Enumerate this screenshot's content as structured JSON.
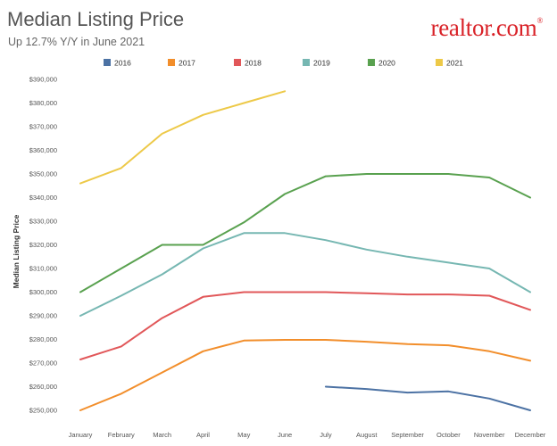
{
  "header": {
    "title": "Median Listing Price",
    "subtitle": "Up 12.7% Y/Y in June 2021",
    "logo_text": "realtor.com",
    "logo_mark": "®"
  },
  "chart_data": {
    "type": "line",
    "title": "Median Listing Price",
    "subtitle": "Up 12.7% Y/Y in June 2021",
    "xlabel": "",
    "ylabel": "Median Listing Price",
    "ylim": [
      246000,
      391000
    ],
    "yticks": [
      250000,
      260000,
      270000,
      280000,
      290000,
      300000,
      310000,
      320000,
      330000,
      340000,
      350000,
      360000,
      370000,
      380000,
      390000
    ],
    "ytick_labels": [
      "$250,000",
      "$260,000",
      "$270,000",
      "$280,000",
      "$290,000",
      "$300,000",
      "$310,000",
      "$320,000",
      "$330,000",
      "$340,000",
      "$350,000",
      "$360,000",
      "$370,000",
      "$380,000",
      "$390,000"
    ],
    "categories": [
      "January",
      "February",
      "March",
      "April",
      "May",
      "June",
      "July",
      "August",
      "September",
      "October",
      "November",
      "December"
    ],
    "grid": false,
    "legend_position": "top",
    "series": [
      {
        "name": "2016",
        "color": "#4c72a4",
        "values": [
          null,
          null,
          null,
          null,
          null,
          null,
          260000,
          259000,
          257500,
          258000,
          255000,
          250000
        ]
      },
      {
        "name": "2017",
        "color": "#f28e2b",
        "values": [
          250000,
          257000,
          266000,
          275000,
          279500,
          279800,
          279800,
          279000,
          278000,
          277500,
          275000,
          271000
        ]
      },
      {
        "name": "2018",
        "color": "#e15759",
        "values": [
          271500,
          277000,
          289000,
          298000,
          300000,
          300000,
          300000,
          299500,
          299000,
          299000,
          298500,
          292500
        ]
      },
      {
        "name": "2019",
        "color": "#76b7b2",
        "values": [
          290000,
          298500,
          307500,
          318500,
          325000,
          325000,
          322000,
          318000,
          315000,
          312500,
          310000,
          300000
        ]
      },
      {
        "name": "2020",
        "color": "#59a14f",
        "values": [
          300000,
          310000,
          320000,
          320000,
          329500,
          341500,
          349000,
          350000,
          350000,
          350000,
          348500,
          340000
        ]
      },
      {
        "name": "2021",
        "color": "#edc948",
        "values": [
          346000,
          352500,
          367000,
          375000,
          380000,
          385000,
          null,
          null,
          null,
          null,
          null,
          null
        ]
      }
    ]
  }
}
